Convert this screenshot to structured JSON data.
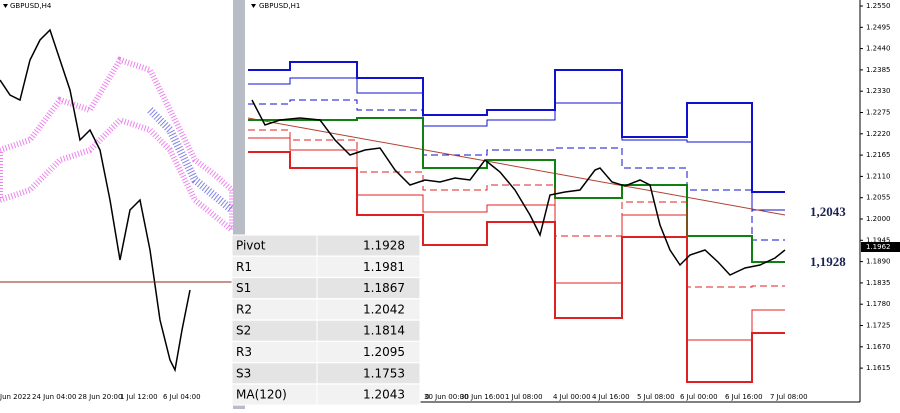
{
  "left_chart": {
    "symbol": "GBPUSD,H4",
    "time_labels": [
      "Jun 2022",
      "24 Jun 04:00",
      "28 Jun 20:00",
      "1 Jul 12:00",
      "6 Jul 04:00"
    ]
  },
  "right_chart": {
    "symbol": "GBPUSD,H1",
    "price_ticks": [
      "1.2550",
      "1.2495",
      "1.2440",
      "1.2385",
      "1.2330",
      "1.2275",
      "1.2220",
      "1.2165",
      "1.2110",
      "1.2055",
      "1.2000",
      "1.1945",
      "1.1890",
      "1.1835",
      "1.1780",
      "1.1725",
      "1.1670",
      "1.1615"
    ],
    "current_price": "1.1962",
    "time_labels": [
      "0",
      "30 Jun 00:00",
      "30 Jun 16:00",
      "1 Jul 08:00",
      "4 Jul 00:00",
      "4 Jul 16:00",
      "5 Jul 08:00",
      "6 Jul 00:00",
      "6 Jul 16:00",
      "7 Jul 08:00"
    ],
    "annotations": [
      "1,2043",
      "1,1928"
    ]
  },
  "table": {
    "rows": [
      [
        "Pivot",
        "1.1928"
      ],
      [
        "R1",
        "1.1981"
      ],
      [
        "S1",
        "1.1867"
      ],
      [
        "R2",
        "1.2042"
      ],
      [
        "S2",
        "1.1814"
      ],
      [
        "R3",
        "1.2095"
      ],
      [
        "S3",
        "1.1753"
      ],
      [
        "MA(120)",
        "1.2043"
      ]
    ]
  }
}
